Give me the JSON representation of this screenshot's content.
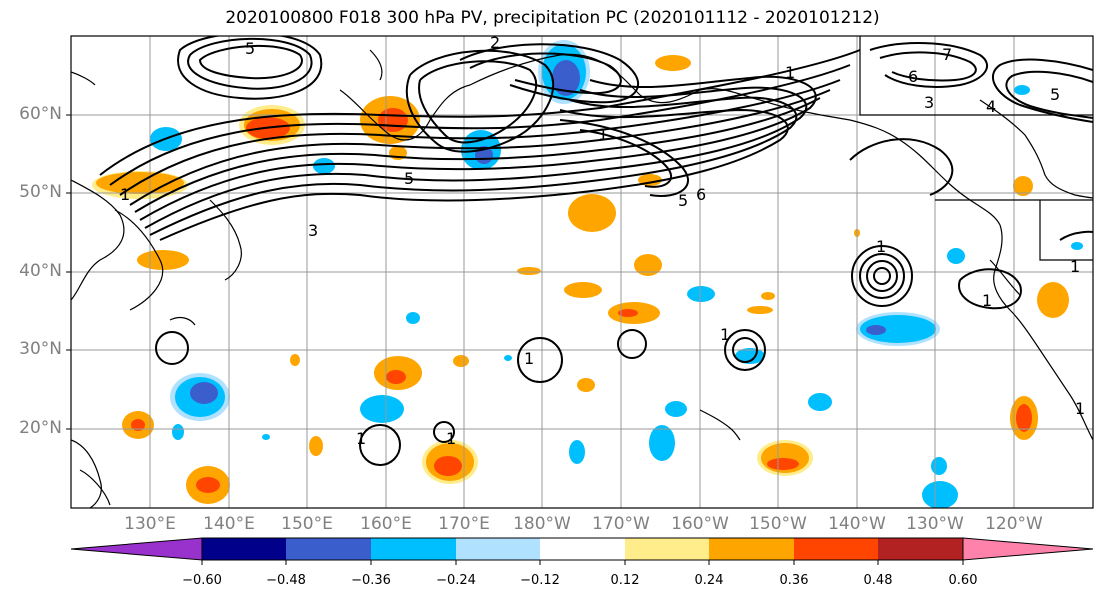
{
  "title": "2020100800 F018 300 hPa PV, precipitation PC (2020101112 - 2020101212)",
  "map": {
    "lat_labels": [
      "60°N",
      "50°N",
      "40°N",
      "30°N",
      "20°N"
    ],
    "lon_labels": [
      "130°E",
      "140°E",
      "150°E",
      "160°E",
      "170°E",
      "180°W",
      "170°W",
      "160°W",
      "150°W",
      "140°W",
      "130°W",
      "120°W"
    ],
    "contour_labels": [
      "5",
      "5",
      "2",
      "1",
      "7",
      "6",
      "5",
      "4",
      "3",
      "1",
      "5",
      "6",
      "3",
      "1",
      "1",
      "1",
      "1",
      "1",
      "1",
      "1",
      "1",
      "1"
    ],
    "colors": {
      "contour": "#000000",
      "grid": "#999999",
      "coast": "#000000"
    }
  },
  "colorbar": {
    "tick_labels": [
      "−0.60",
      "−0.48",
      "−0.36",
      "−0.24",
      "−0.12",
      "0.12",
      "0.24",
      "0.36",
      "0.48",
      "0.60"
    ],
    "bin_colors": [
      "#9932cc",
      "#00008b",
      "#3a5fcd",
      "#00bfff",
      "#b0e2ff",
      "#ffffff",
      "#ffec8b",
      "#ffa500",
      "#ff4500",
      "#b22222",
      "#ff82ab"
    ]
  }
}
